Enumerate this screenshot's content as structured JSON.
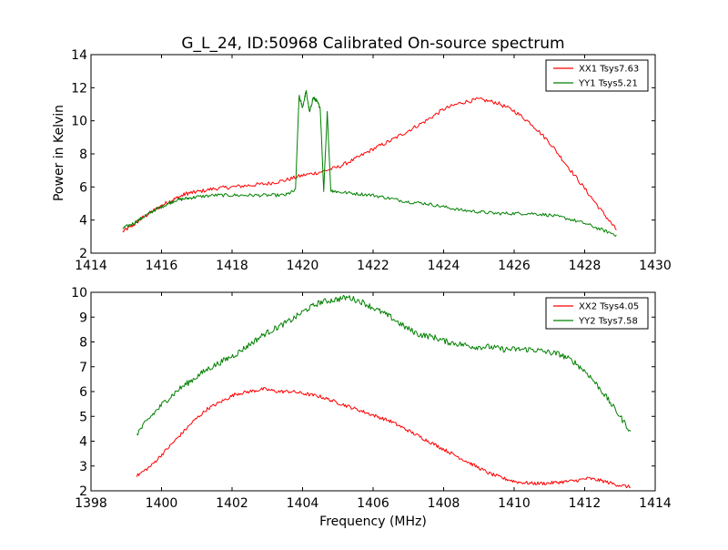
{
  "figure": {
    "title": "G_L_24, ID:50968 Calibrated On-source spectrum",
    "ylabel": "Power in Kelvin",
    "xlabel": "Frequency (MHz)"
  },
  "chart_data": [
    {
      "type": "line",
      "title": "G_L_24, ID:50968 Calibrated On-source spectrum",
      "xlabel": "",
      "ylabel": "Power in Kelvin",
      "xlim": [
        1414,
        1430
      ],
      "ylim": [
        2,
        14
      ],
      "xticks": [
        1414,
        1416,
        1418,
        1420,
        1422,
        1424,
        1426,
        1428,
        1430
      ],
      "yticks": [
        2,
        4,
        6,
        8,
        10,
        12,
        14
      ],
      "grid": false,
      "legend_position": "top-right",
      "series": [
        {
          "name": "XX1 Tsys7.63",
          "color": "#ff0000",
          "noise": 0.12,
          "x": [
            1414.9,
            1415.2,
            1415.5,
            1415.8,
            1416.1,
            1416.4,
            1416.7,
            1417.0,
            1417.5,
            1418.0,
            1418.5,
            1419.0,
            1419.5,
            1420.0,
            1420.5,
            1421.0,
            1421.5,
            1422.0,
            1422.5,
            1423.0,
            1423.5,
            1424.0,
            1424.5,
            1425.0,
            1425.5,
            1426.0,
            1426.5,
            1427.0,
            1427.5,
            1428.0,
            1428.5,
            1428.9
          ],
          "y": [
            3.3,
            3.7,
            4.2,
            4.6,
            5.0,
            5.3,
            5.6,
            5.7,
            5.9,
            6.0,
            6.1,
            6.2,
            6.4,
            6.7,
            6.9,
            7.2,
            7.7,
            8.3,
            8.8,
            9.4,
            10.0,
            10.7,
            11.1,
            11.3,
            11.1,
            10.6,
            9.8,
            8.7,
            7.3,
            5.9,
            4.5,
            3.4
          ]
        },
        {
          "name": "YY1 Tsys5.21",
          "color": "#008000",
          "noise": 0.1,
          "x": [
            1414.9,
            1415.2,
            1415.5,
            1415.8,
            1416.1,
            1416.4,
            1416.7,
            1417.0,
            1417.5,
            1418.0,
            1418.5,
            1419.0,
            1419.5,
            1419.8,
            1419.9,
            1420.0,
            1420.1,
            1420.2,
            1420.3,
            1420.4,
            1420.5,
            1420.6,
            1420.7,
            1420.8,
            1421.0,
            1421.5,
            1422.0,
            1422.5,
            1423.0,
            1423.5,
            1424.0,
            1424.5,
            1425.0,
            1425.5,
            1426.0,
            1426.5,
            1427.0,
            1427.5,
            1428.0,
            1428.5,
            1428.9
          ],
          "y": [
            3.5,
            3.8,
            4.2,
            4.6,
            4.9,
            5.2,
            5.3,
            5.4,
            5.5,
            5.5,
            5.5,
            5.5,
            5.5,
            5.8,
            11.5,
            10.8,
            11.8,
            10.5,
            11.4,
            11.2,
            10.8,
            5.8,
            10.5,
            5.8,
            5.7,
            5.6,
            5.5,
            5.3,
            5.1,
            5.0,
            4.8,
            4.6,
            4.5,
            4.4,
            4.4,
            4.4,
            4.3,
            4.1,
            3.8,
            3.4,
            3.1
          ]
        }
      ]
    },
    {
      "type": "line",
      "title": "",
      "xlabel": "Frequency (MHz)",
      "ylabel": "",
      "xlim": [
        1398,
        1414
      ],
      "ylim": [
        2,
        10
      ],
      "xticks": [
        1398,
        1400,
        1402,
        1404,
        1406,
        1408,
        1410,
        1412,
        1414
      ],
      "yticks": [
        2,
        3,
        4,
        5,
        6,
        7,
        8,
        9,
        10
      ],
      "grid": false,
      "legend_position": "top-right",
      "series": [
        {
          "name": "XX2 Tsys4.05",
          "color": "#ff0000",
          "noise": 0.07,
          "x": [
            1399.3,
            1399.7,
            1400.1,
            1400.5,
            1400.9,
            1401.3,
            1401.7,
            1402.1,
            1402.5,
            1402.9,
            1403.3,
            1403.7,
            1404.1,
            1404.5,
            1404.9,
            1405.3,
            1405.7,
            1406.1,
            1406.5,
            1406.9,
            1407.3,
            1407.7,
            1408.1,
            1408.5,
            1408.9,
            1409.3,
            1409.7,
            1410.1,
            1410.5,
            1410.9,
            1411.3,
            1411.7,
            1412.1,
            1412.5,
            1412.9,
            1413.3
          ],
          "y": [
            2.6,
            3.0,
            3.6,
            4.2,
            4.8,
            5.3,
            5.6,
            5.9,
            6.0,
            6.1,
            6.0,
            6.0,
            5.9,
            5.8,
            5.6,
            5.4,
            5.2,
            5.0,
            4.8,
            4.5,
            4.2,
            3.9,
            3.6,
            3.3,
            3.0,
            2.7,
            2.5,
            2.35,
            2.3,
            2.3,
            2.35,
            2.4,
            2.5,
            2.4,
            2.25,
            2.15
          ]
        },
        {
          "name": "YY2 Tsys7.58",
          "color": "#008000",
          "noise": 0.12,
          "x": [
            1399.3,
            1399.7,
            1400.1,
            1400.5,
            1400.9,
            1401.3,
            1401.7,
            1402.1,
            1402.5,
            1402.9,
            1403.3,
            1403.7,
            1404.1,
            1404.5,
            1404.9,
            1405.3,
            1405.7,
            1406.1,
            1406.5,
            1406.9,
            1407.3,
            1407.7,
            1408.1,
            1408.5,
            1408.9,
            1409.3,
            1409.7,
            1410.1,
            1410.5,
            1410.9,
            1411.3,
            1411.7,
            1412.1,
            1412.5,
            1412.9,
            1413.3
          ],
          "y": [
            4.3,
            5.0,
            5.6,
            6.1,
            6.5,
            6.9,
            7.2,
            7.5,
            7.9,
            8.3,
            8.6,
            8.9,
            9.3,
            9.6,
            9.7,
            9.8,
            9.6,
            9.3,
            9.0,
            8.6,
            8.3,
            8.2,
            8.0,
            7.9,
            7.8,
            7.8,
            7.7,
            7.7,
            7.7,
            7.6,
            7.5,
            7.2,
            6.7,
            6.0,
            5.2,
            4.4
          ]
        }
      ]
    }
  ]
}
